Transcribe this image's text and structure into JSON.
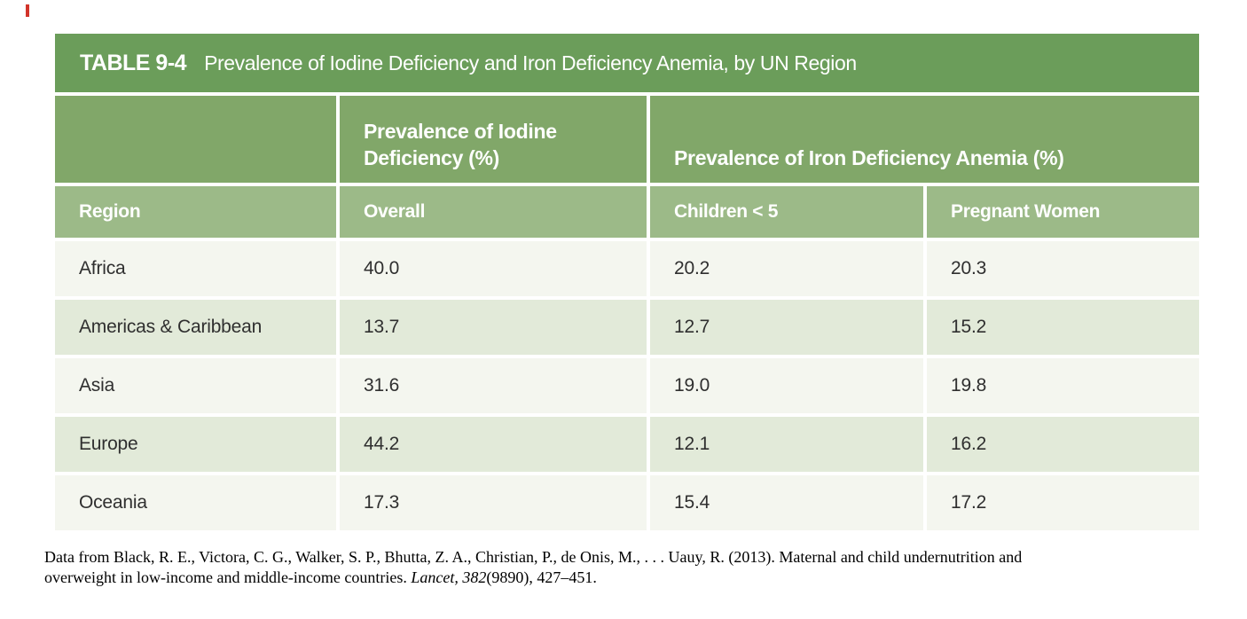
{
  "table": {
    "title_label": "TABLE 9-4",
    "title_text": "Prevalence of Iodine Deficiency and Iron Deficiency Anemia, by UN Region",
    "group_headers": {
      "iodine": "Prevalence of Iodine Deficiency (%)",
      "iron": "Prevalence of Iron Deficiency Anemia (%)"
    },
    "column_headers": {
      "region": "Region",
      "overall": "Overall",
      "children": "Children < 5",
      "pregnant": "Pregnant Women"
    },
    "rows": [
      {
        "region": "Africa",
        "overall": "40.0",
        "children": "20.2",
        "pregnant": "20.3"
      },
      {
        "region": "Americas & Caribbean",
        "overall": "13.7",
        "children": "12.7",
        "pregnant": "15.2"
      },
      {
        "region": "Asia",
        "overall": "31.6",
        "children": "19.0",
        "pregnant": "19.8"
      },
      {
        "region": "Europe",
        "overall": "44.2",
        "children": "12.1",
        "pregnant": "16.2"
      },
      {
        "region": "Oceania",
        "overall": "17.3",
        "children": "15.4",
        "pregnant": "17.2"
      }
    ]
  },
  "footer": {
    "citation_line1": "Data from Black, R. E., Victora, C. G., Walker, S. P., Bhutta, Z. A., Christian, P., de Onis, M., . . . Uauy, R. (2013). Maternal and child undernutrition and",
    "citation_line2_prefix": "overweight in low-income and middle-income countries. ",
    "citation_italic": "Lancet, 382",
    "citation_suffix": "(9890), 427–451."
  },
  "colors": {
    "title_bar_green": "#6b9d5a",
    "group_header_green": "#81a769",
    "subheader_green": "#9cba88",
    "row_light": "#f4f6ef",
    "row_shaded": "#e2ead9",
    "header_text": "#ffffff",
    "body_text": "#2f2f2f",
    "cursor_mark_red": "#d2342a"
  }
}
